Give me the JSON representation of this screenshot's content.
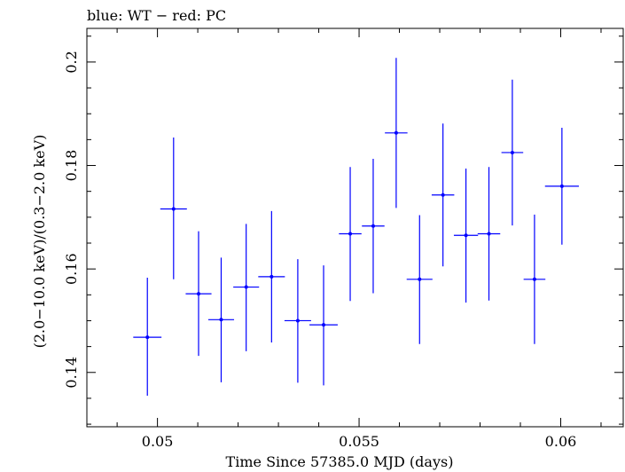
{
  "chart_data": {
    "type": "scatter",
    "title": "blue: WT − red: PC",
    "xlabel": "Time Since 57385.0 MJD (days)",
    "ylabel": "(2.0−10.0 keV)/(0.3−2.0 keV)",
    "xlim": [
      0.04825,
      0.06155
    ],
    "ylim": [
      0.1295,
      0.2065
    ],
    "xticks": [
      0.05,
      0.055,
      0.06
    ],
    "xtick_labels": [
      "0.05",
      "0.055",
      "0.06"
    ],
    "yticks": [
      0.14,
      0.16,
      0.18,
      0.2
    ],
    "ytick_labels": [
      "0.14",
      "0.16",
      "0.18",
      "0.2"
    ],
    "grid": false,
    "series": [
      {
        "color": "#0000ff",
        "points": [
          {
            "x": 0.04975,
            "y": 0.1468,
            "xerr": 0.00035,
            "yerr_low": 0.0113,
            "yerr_high": 0.0115
          },
          {
            "x": 0.0504,
            "y": 0.1716,
            "xerr": 0.00033,
            "yerr_low": 0.0136,
            "yerr_high": 0.0138
          },
          {
            "x": 0.05102,
            "y": 0.1552,
            "xerr": 0.00032,
            "yerr_low": 0.012,
            "yerr_high": 0.0121
          },
          {
            "x": 0.05158,
            "y": 0.1502,
            "xerr": 0.00032,
            "yerr_low": 0.0121,
            "yerr_high": 0.012
          },
          {
            "x": 0.0522,
            "y": 0.1565,
            "xerr": 0.00032,
            "yerr_low": 0.0124,
            "yerr_high": 0.0122
          },
          {
            "x": 0.05283,
            "y": 0.1585,
            "xerr": 0.00033,
            "yerr_low": 0.0127,
            "yerr_high": 0.0127
          },
          {
            "x": 0.05348,
            "y": 0.15,
            "xerr": 0.00033,
            "yerr_low": 0.012,
            "yerr_high": 0.0119
          },
          {
            "x": 0.05412,
            "y": 0.1492,
            "xerr": 0.00035,
            "yerr_low": 0.0117,
            "yerr_high": 0.0115
          },
          {
            "x": 0.05478,
            "y": 0.1668,
            "xerr": 0.00028,
            "yerr_low": 0.013,
            "yerr_high": 0.0129
          },
          {
            "x": 0.05535,
            "y": 0.1683,
            "xerr": 0.00028,
            "yerr_low": 0.013,
            "yerr_high": 0.013
          },
          {
            "x": 0.05592,
            "y": 0.1863,
            "xerr": 0.00028,
            "yerr_low": 0.0145,
            "yerr_high": 0.0145
          },
          {
            "x": 0.0565,
            "y": 0.158,
            "xerr": 0.00032,
            "yerr_low": 0.0125,
            "yerr_high": 0.0124
          },
          {
            "x": 0.05708,
            "y": 0.1743,
            "xerr": 0.00028,
            "yerr_low": 0.0138,
            "yerr_high": 0.0138
          },
          {
            "x": 0.05765,
            "y": 0.1665,
            "xerr": 0.0003,
            "yerr_low": 0.013,
            "yerr_high": 0.0129
          },
          {
            "x": 0.05822,
            "y": 0.1668,
            "xerr": 0.00028,
            "yerr_low": 0.0129,
            "yerr_high": 0.0129
          },
          {
            "x": 0.0588,
            "y": 0.1825,
            "xerr": 0.00027,
            "yerr_low": 0.0141,
            "yerr_high": 0.0141
          },
          {
            "x": 0.05935,
            "y": 0.158,
            "xerr": 0.00027,
            "yerr_low": 0.0125,
            "yerr_high": 0.0125
          },
          {
            "x": 0.06003,
            "y": 0.176,
            "xerr": 0.00042,
            "yerr_low": 0.0113,
            "yerr_high": 0.0113
          }
        ]
      }
    ]
  }
}
